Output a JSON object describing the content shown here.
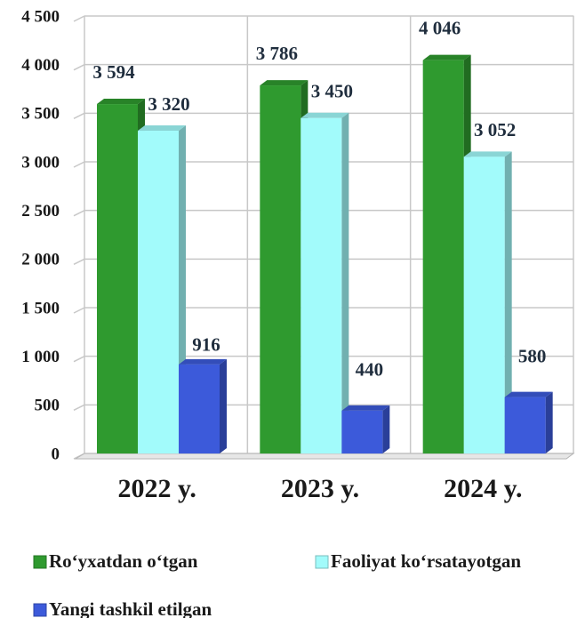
{
  "chart_data": {
    "type": "bar",
    "categories": [
      "2022 y.",
      "2023 y.",
      "2024 y."
    ],
    "series": [
      {
        "name": "Ro‘yxatdan o‘tgan",
        "color": "#2f9a2f",
        "values": [
          3594,
          3786,
          4046
        ],
        "value_labels": [
          "3 594",
          "3 786",
          "4 046"
        ]
      },
      {
        "name": "Faoliyat ko‘rsatayotgan",
        "color": "#a2fbfb",
        "values": [
          3320,
          3450,
          3052
        ],
        "value_labels": [
          "3 320",
          "3 450",
          "3 052"
        ]
      },
      {
        "name": "Yangi tashkil etilgan",
        "color": "#3c5ada",
        "values": [
          916,
          440,
          580
        ],
        "value_labels": [
          "916",
          "440",
          "580"
        ]
      }
    ],
    "ylim": [
      0,
      4500
    ],
    "yticks": [
      0,
      500,
      {
        "value": 1000,
        "label": "1 000"
      },
      {
        "value": 1500,
        "label": "1 500"
      },
      {
        "value": 2000,
        "label": "2 000"
      },
      {
        "value": 2500,
        "label": "2 500"
      },
      {
        "value": 3000,
        "label": "3 000"
      },
      {
        "value": 3500,
        "label": "3 500"
      },
      {
        "value": 4000,
        "label": "4 000"
      },
      {
        "value": 4500,
        "label": "4 500"
      }
    ],
    "grid": true,
    "legend": "bottom"
  }
}
